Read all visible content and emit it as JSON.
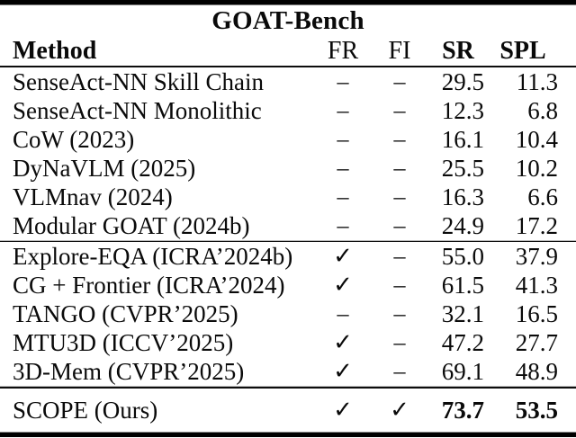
{
  "table": {
    "title": "GOAT-Bench",
    "headers": {
      "method": "Method",
      "fr": "FR",
      "fi": "FI",
      "sr": "SR",
      "spl": "SPL"
    },
    "sections": [
      {
        "rows": [
          {
            "method": "SenseAct-NN Skill Chain",
            "fr": "–",
            "fi": "–",
            "sr": "29.5",
            "spl": "11.3"
          },
          {
            "method": "SenseAct-NN Monolithic",
            "fr": "–",
            "fi": "–",
            "sr": "12.3",
            "spl": "6.8"
          },
          {
            "method": "CoW (2023)",
            "fr": "–",
            "fi": "–",
            "sr": "16.1",
            "spl": "10.4"
          },
          {
            "method": "DyNaVLM (2025)",
            "fr": "–",
            "fi": "–",
            "sr": "25.5",
            "spl": "10.2"
          },
          {
            "method": "VLMnav (2024)",
            "fr": "–",
            "fi": "–",
            "sr": "16.3",
            "spl": "6.6"
          },
          {
            "method": "Modular GOAT (2024b)",
            "fr": "–",
            "fi": "–",
            "sr": "24.9",
            "spl": "17.2"
          }
        ]
      },
      {
        "rows": [
          {
            "method": "Explore-EQA (ICRA’2024b)",
            "fr": "✓",
            "fi": "–",
            "sr": "55.0",
            "spl": "37.9"
          },
          {
            "method": "CG + Frontier (ICRA’2024)",
            "fr": "✓",
            "fi": "–",
            "sr": "61.5",
            "spl": "41.3"
          },
          {
            "method": "TANGO (CVPR’2025)",
            "fr": "–",
            "fi": "–",
            "sr": "32.1",
            "spl": "16.5"
          },
          {
            "method": "MTU3D (ICCV’2025)",
            "fr": "✓",
            "fi": "–",
            "sr": "47.2",
            "spl": "27.7"
          },
          {
            "method": "3D-Mem (CVPR’2025)",
            "fr": "✓",
            "fi": "–",
            "sr": "69.1",
            "spl": "48.9"
          }
        ]
      },
      {
        "rows": [
          {
            "method": "SCOPE (Ours)",
            "fr": "✓",
            "fi": "✓",
            "sr": "73.7",
            "spl": "53.5",
            "bold_values": true
          }
        ]
      }
    ],
    "colors": {
      "text": "#0a0a0a",
      "rule": "#000000",
      "background": "#ffffff"
    }
  }
}
